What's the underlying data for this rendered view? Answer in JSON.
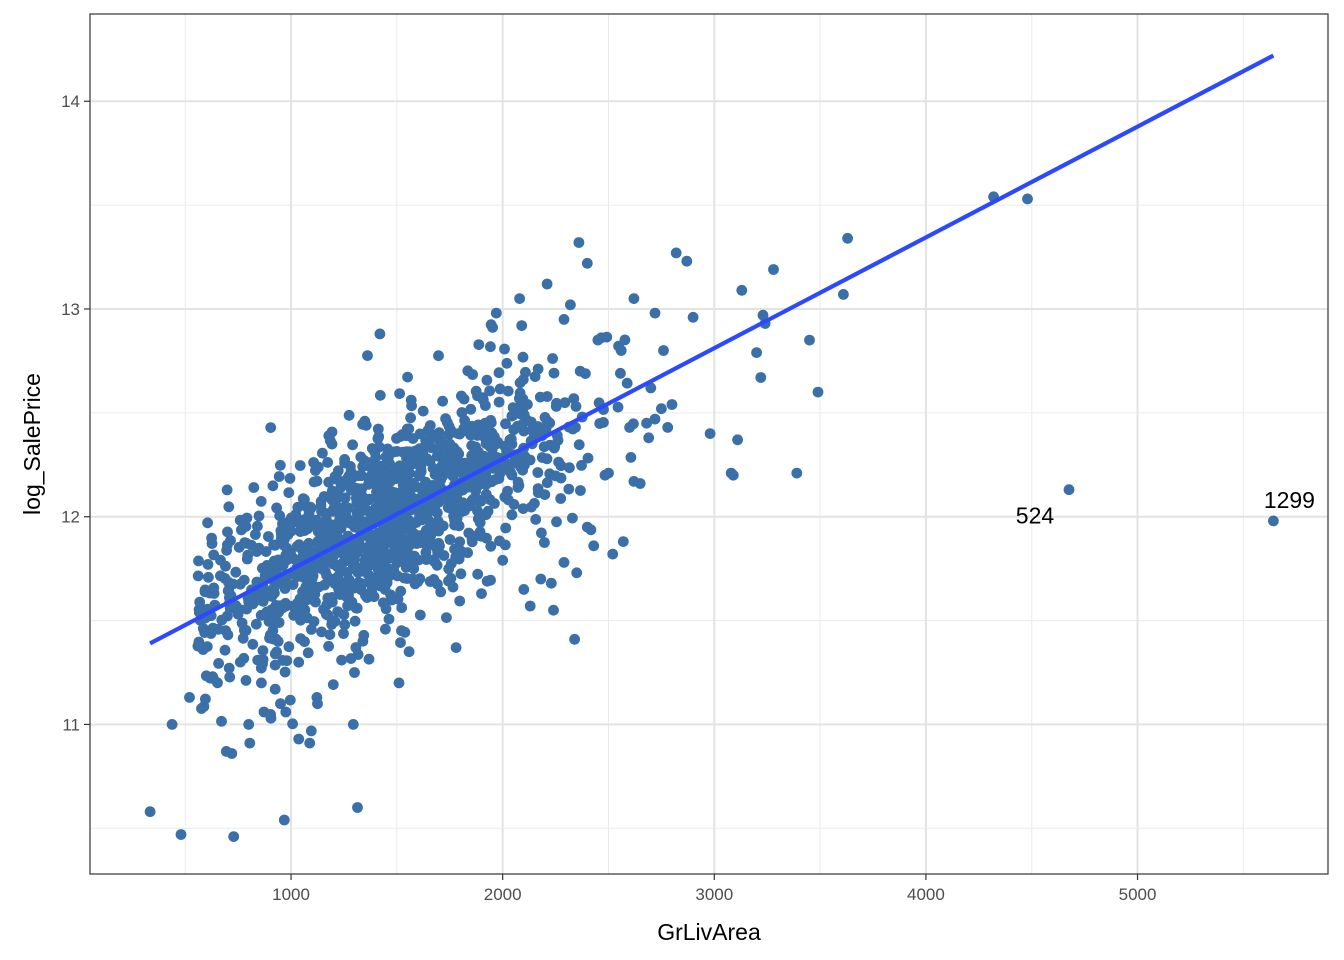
{
  "chart_data": {
    "type": "scatter",
    "xlabel": "GrLivArea",
    "ylabel": "log_SalePrice",
    "xlim": [
      50,
      5900
    ],
    "ylim": [
      10.28,
      14.42
    ],
    "x_ticks": [
      "1000",
      "2000",
      "3000",
      "4000",
      "5000"
    ],
    "y_ticks": [
      "11",
      "12",
      "13",
      "14"
    ],
    "grid": true,
    "point_color": "#3a6fa8",
    "line_color": "#2d49ff",
    "fit_line": {
      "x": [
        334,
        5642
      ],
      "y": [
        11.39,
        14.22
      ]
    },
    "annotations": [
      {
        "label": "524",
        "x": 4676,
        "y": 12.13
      },
      {
        "label": "1299",
        "x": 5642,
        "y": 11.98
      }
    ],
    "points": [
      [
        334,
        10.58
      ],
      [
        438,
        11.0
      ],
      [
        480,
        10.47
      ],
      [
        520,
        11.13
      ],
      [
        630,
        11.23
      ],
      [
        694,
        10.87
      ],
      [
        720,
        10.86
      ],
      [
        729,
        10.46
      ],
      [
        760,
        11.3
      ],
      [
        800,
        11.0
      ],
      [
        805,
        10.91
      ],
      [
        860,
        11.2
      ],
      [
        872,
        11.06
      ],
      [
        905,
        11.03
      ],
      [
        950,
        11.1
      ],
      [
        975,
        11.06
      ],
      [
        968,
        10.54
      ],
      [
        1036,
        10.93
      ],
      [
        1088,
        10.91
      ],
      [
        1122,
        11.13
      ],
      [
        1125,
        11.1
      ],
      [
        1294,
        11.0
      ],
      [
        1300,
        11.25
      ],
      [
        1314,
        10.6
      ],
      [
        1420,
        12.88
      ],
      [
        1510,
        11.2
      ],
      [
        1558,
        11.35
      ],
      [
        1780,
        11.37
      ],
      [
        1900,
        11.63
      ],
      [
        2000,
        11.79
      ],
      [
        2100,
        11.65
      ],
      [
        2130,
        11.57
      ],
      [
        2180,
        11.7
      ],
      [
        2230,
        11.68
      ],
      [
        2240,
        11.55
      ],
      [
        2290,
        11.78
      ],
      [
        2340,
        11.41
      ],
      [
        2350,
        11.73
      ],
      [
        2400,
        11.95
      ],
      [
        2430,
        11.86
      ],
      [
        2500,
        12.21
      ],
      [
        2520,
        11.82
      ],
      [
        2570,
        11.88
      ],
      [
        2600,
        12.43
      ],
      [
        2620,
        12.17
      ],
      [
        2650,
        12.16
      ],
      [
        2680,
        12.45
      ],
      [
        2690,
        12.38
      ],
      [
        2700,
        12.62
      ],
      [
        2720,
        12.47
      ],
      [
        2750,
        12.52
      ],
      [
        2760,
        12.8
      ],
      [
        2780,
        12.43
      ],
      [
        2800,
        12.54
      ],
      [
        2820,
        13.27
      ],
      [
        2870,
        13.23
      ],
      [
        2900,
        12.96
      ],
      [
        2980,
        12.4
      ],
      [
        3080,
        12.21
      ],
      [
        3090,
        12.2
      ],
      [
        3110,
        12.37
      ],
      [
        3130,
        13.09
      ],
      [
        3200,
        12.79
      ],
      [
        3220,
        12.67
      ],
      [
        3230,
        12.97
      ],
      [
        3240,
        12.93
      ],
      [
        3280,
        13.19
      ],
      [
        3390,
        12.21
      ],
      [
        3450,
        12.85
      ],
      [
        3490,
        12.6
      ],
      [
        3610,
        13.07
      ],
      [
        3630,
        13.34
      ],
      [
        4320,
        13.54
      ],
      [
        4480,
        13.53
      ],
      [
        4676,
        12.13
      ],
      [
        5642,
        11.98
      ],
      [
        2360,
        13.32
      ],
      [
        2400,
        13.22
      ],
      [
        2210,
        13.12
      ],
      [
        2080,
        13.05
      ],
      [
        1970,
        12.98
      ],
      [
        2090,
        12.92
      ],
      [
        2290,
        12.95
      ],
      [
        2320,
        13.02
      ],
      [
        2620,
        13.05
      ],
      [
        2560,
        12.8
      ],
      [
        2450,
        12.85
      ],
      [
        2720,
        12.98
      ]
    ]
  }
}
